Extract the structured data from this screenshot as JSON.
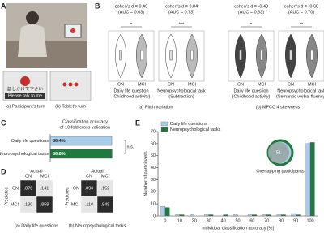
{
  "panel_labels": [
    "A",
    "B",
    "C",
    "D",
    "E"
  ],
  "panel_a": {
    "screen_text_ja": "話しかけて下さい",
    "screen_text_en": "Please talk to me",
    "captions": [
      "(a) Participant's turn",
      "(b) Tablet's turn"
    ]
  },
  "panel_b": {
    "plots": [
      {
        "stat": "cohen's d = 0.49",
        "auc": "(AUC = 0.63)",
        "sig": "*",
        "task": "Daily life question",
        "subtask": "(Childhood activity)"
      },
      {
        "stat": "cohen's d = 0.84",
        "auc": "(AUC = 0.73)",
        "sig": "***",
        "task": "Neuropsychological task",
        "subtask": "(Subtraction)"
      },
      {
        "stat": "cohen's d = -0.48",
        "auc": "(AUC = 0.63)",
        "sig": "*",
        "task": "Daily life question",
        "subtask": "(Childhood activity)"
      },
      {
        "stat": "cohen's d = -0.68",
        "auc": "(AUC = 0.70)",
        "sig": "**",
        "task": "Neuropsychological task",
        "subtask": "(Semantic verbal fluency)"
      }
    ],
    "groups": [
      "(a) Pitch variation",
      "(b) MFCC 4 skewness"
    ],
    "x_labels": [
      "CN",
      "MCI"
    ]
  },
  "panel_d": {
    "header": "Actual",
    "side": "Predicted",
    "classes": [
      "CN",
      "MCI"
    ],
    "matrices": [
      {
        "caption": "(a) Daily life questions",
        "cells": [
          [
            ".870",
            ".141"
          ],
          [
            ".130",
            ".859"
          ]
        ]
      },
      {
        "caption": "(b) Neuropsychological tasks",
        "cells": [
          [
            ".890",
            ".152"
          ],
          [
            ".110",
            ".848"
          ]
        ]
      }
    ]
  },
  "chart_data": [
    {
      "type": "hbar",
      "title": [
        "Classification accuracy",
        "of 10-fold cross validation"
      ],
      "categories": [
        "Daily life questions",
        "Neuropsychological tasks"
      ],
      "values": [
        86.4,
        86.8
      ],
      "value_labels": [
        "86.4%",
        "86.8%"
      ],
      "colors": [
        "#a8cdea",
        "#1f7a3d"
      ],
      "xlim": [
        0,
        100
      ],
      "annotation": "n.s."
    },
    {
      "type": "bar",
      "x_label": "Individual classification accuracy [%]",
      "y_label": "Number of participants",
      "categories": [
        "0",
        "10",
        "20",
        "30",
        "40",
        "50",
        "60",
        "70",
        "80",
        "90",
        "100"
      ],
      "series": [
        {
          "name": "Daily life questions",
          "color": "#a8cdea",
          "values": [
            8,
            1,
            1,
            1,
            0,
            1,
            1,
            1,
            1,
            2,
            60
          ]
        },
        {
          "name": "Neuropsychological tasks",
          "color": "#1f7a3d",
          "values": [
            7,
            1,
            0,
            1,
            1,
            0,
            1,
            1,
            1,
            1,
            61
          ]
        }
      ],
      "ylim": [
        0,
        70
      ],
      "yticks": [
        0,
        10,
        20,
        30,
        40,
        50,
        60,
        70
      ],
      "legend": "top-left",
      "inset": {
        "value": "51",
        "label": "Overlapping participants"
      }
    }
  ]
}
